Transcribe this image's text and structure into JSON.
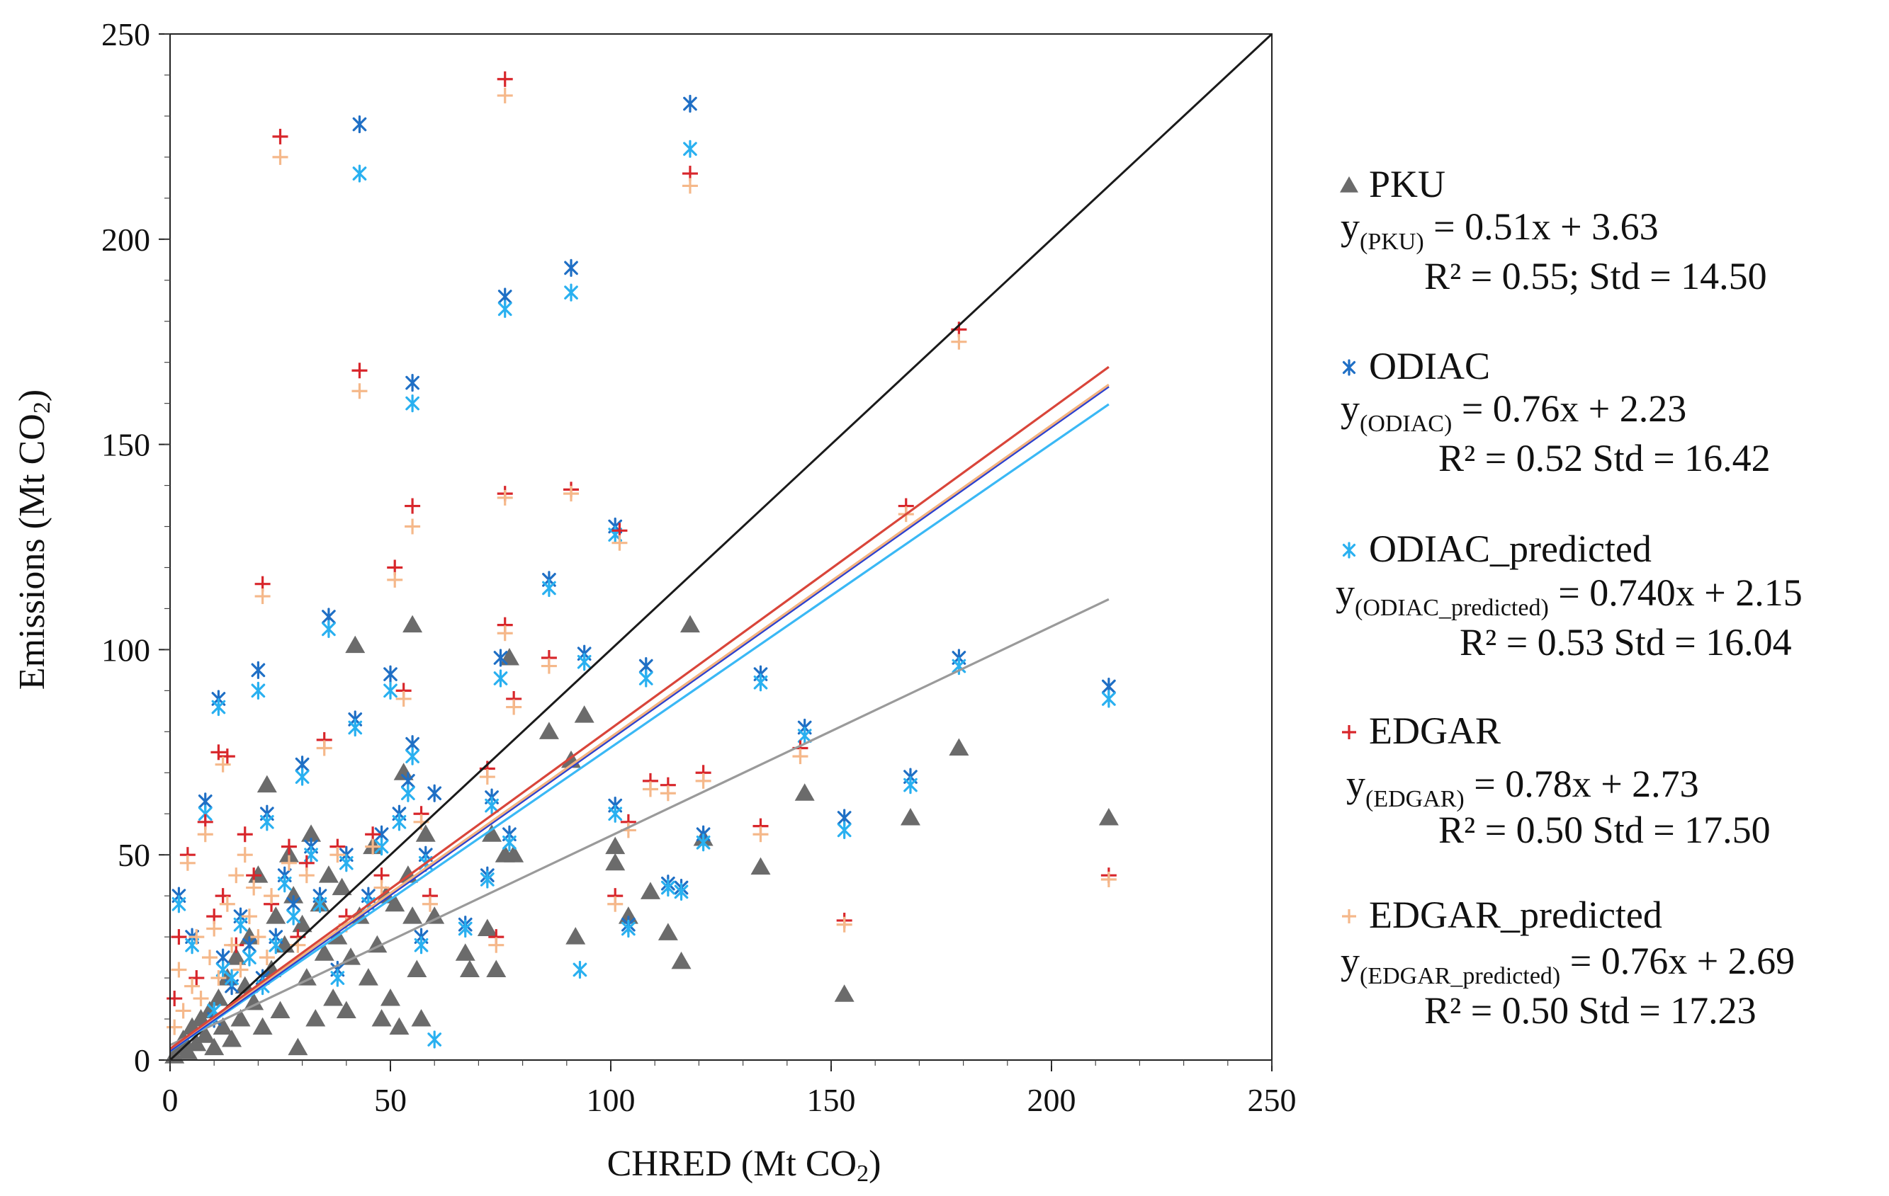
{
  "chart_data": {
    "type": "scatter",
    "title": "",
    "xlabel": "CHRED (Mt CO",
    "xlabel_sub": "2",
    "xlabel_end": ")",
    "ylabel": "Emissions (Mt CO",
    "ylabel_sub": "2",
    "ylabel_end": ")",
    "xlim": [
      0,
      250
    ],
    "ylim": [
      0,
      250
    ],
    "x_ticks": [
      "0",
      "50",
      "100",
      "150",
      "200",
      "250"
    ],
    "y_ticks": [
      "0",
      "50",
      "100",
      "150",
      "200",
      "250"
    ],
    "grid": false,
    "legend_position": "right",
    "reference_line": {
      "slope": 1,
      "intercept": 0,
      "color": "#1a1a1a"
    },
    "series": [
      {
        "name": "PKU",
        "marker": "triangle",
        "color": "#6b6b6b",
        "line_color": "#9a9a9a",
        "eq_y": "y",
        "eq_sub": "(PKU)",
        "eq_rest": " = 0.51x + 3.63",
        "stats": "R² = 0.55; Std = 14.50",
        "slope": 0.51,
        "intercept": 3.63,
        "r2": 0.55,
        "std": 14.5,
        "points": [
          [
            1,
            1
          ],
          [
            2,
            3
          ],
          [
            3,
            5
          ],
          [
            4,
            2
          ],
          [
            5,
            8
          ],
          [
            6,
            4
          ],
          [
            7,
            10
          ],
          [
            8,
            6
          ],
          [
            9,
            12
          ],
          [
            10,
            3
          ],
          [
            11,
            15
          ],
          [
            12,
            8
          ],
          [
            13,
            20
          ],
          [
            14,
            5
          ],
          [
            15,
            25
          ],
          [
            16,
            10
          ],
          [
            17,
            18
          ],
          [
            18,
            30
          ],
          [
            19,
            14
          ],
          [
            20,
            45
          ],
          [
            21,
            8
          ],
          [
            22,
            67
          ],
          [
            23,
            22
          ],
          [
            24,
            35
          ],
          [
            25,
            12
          ],
          [
            26,
            28
          ],
          [
            27,
            50
          ],
          [
            28,
            40
          ],
          [
            29,
            3
          ],
          [
            30,
            33
          ],
          [
            31,
            20
          ],
          [
            32,
            55
          ],
          [
            33,
            10
          ],
          [
            34,
            38
          ],
          [
            35,
            26
          ],
          [
            36,
            45
          ],
          [
            37,
            15
          ],
          [
            38,
            30
          ],
          [
            39,
            42
          ],
          [
            40,
            12
          ],
          [
            41,
            25
          ],
          [
            42,
            101
          ],
          [
            43,
            35
          ],
          [
            45,
            20
          ],
          [
            46,
            52
          ],
          [
            47,
            28
          ],
          [
            48,
            10
          ],
          [
            49,
            40
          ],
          [
            50,
            15
          ],
          [
            51,
            38
          ],
          [
            52,
            8
          ],
          [
            53,
            70
          ],
          [
            54,
            45
          ],
          [
            55,
            106
          ],
          [
            55,
            35
          ],
          [
            56,
            22
          ],
          [
            57,
            10
          ],
          [
            58,
            55
          ],
          [
            60,
            35
          ],
          [
            67,
            26
          ],
          [
            68,
            22
          ],
          [
            72,
            32
          ],
          [
            73,
            55
          ],
          [
            74,
            22
          ],
          [
            76,
            50
          ],
          [
            77,
            98
          ],
          [
            78,
            50
          ],
          [
            86,
            80
          ],
          [
            91,
            73
          ],
          [
            92,
            30
          ],
          [
            94,
            84
          ],
          [
            101,
            48
          ],
          [
            101,
            52
          ],
          [
            104,
            35
          ],
          [
            109,
            41
          ],
          [
            113,
            31
          ],
          [
            116,
            24
          ],
          [
            118,
            106
          ],
          [
            121,
            54
          ],
          [
            134,
            47
          ],
          [
            144,
            65
          ],
          [
            153,
            16
          ],
          [
            168,
            59
          ],
          [
            179,
            76
          ],
          [
            213,
            59
          ]
        ]
      },
      {
        "name": "ODIAC",
        "marker": "star",
        "color": "#1f6fc5",
        "line_color": "#2a3fd0",
        "eq_y": "y",
        "eq_sub": "(ODIAC)",
        "eq_rest": " = 0.76x + 2.23",
        "stats": "R² = 0.52 Std = 16.42",
        "slope": 0.76,
        "intercept": 2.23,
        "r2": 0.52,
        "std": 16.42,
        "points": [
          [
            2,
            40
          ],
          [
            5,
            30
          ],
          [
            8,
            63
          ],
          [
            10,
            10
          ],
          [
            11,
            88
          ],
          [
            12,
            25
          ],
          [
            14,
            18
          ],
          [
            16,
            35
          ],
          [
            18,
            28
          ],
          [
            20,
            95
          ],
          [
            21,
            20
          ],
          [
            22,
            60
          ],
          [
            24,
            30
          ],
          [
            26,
            45
          ],
          [
            28,
            38
          ],
          [
            30,
            72
          ],
          [
            32,
            52
          ],
          [
            34,
            40
          ],
          [
            36,
            108
          ],
          [
            38,
            22
          ],
          [
            40,
            50
          ],
          [
            42,
            83
          ],
          [
            43,
            228
          ],
          [
            45,
            40
          ],
          [
            48,
            55
          ],
          [
            50,
            94
          ],
          [
            52,
            60
          ],
          [
            54,
            68
          ],
          [
            55,
            165
          ],
          [
            55,
            77
          ],
          [
            57,
            30
          ],
          [
            58,
            50
          ],
          [
            60,
            65
          ],
          [
            67,
            33
          ],
          [
            72,
            45
          ],
          [
            73,
            64
          ],
          [
            75,
            98
          ],
          [
            76,
            186
          ],
          [
            77,
            55
          ],
          [
            86,
            117
          ],
          [
            91,
            193
          ],
          [
            94,
            99
          ],
          [
            101,
            130
          ],
          [
            101,
            62
          ],
          [
            104,
            33
          ],
          [
            108,
            96
          ],
          [
            113,
            43
          ],
          [
            116,
            42
          ],
          [
            118,
            233
          ],
          [
            121,
            55
          ],
          [
            134,
            94
          ],
          [
            144,
            81
          ],
          [
            153,
            59
          ],
          [
            168,
            69
          ],
          [
            179,
            98
          ],
          [
            213,
            91
          ]
        ]
      },
      {
        "name": "ODIAC_predicted",
        "marker": "star",
        "color": "#29b0f0",
        "line_color": "#3ab8f5",
        "eq_y": "y",
        "eq_sub": "(ODIAC_predicted)",
        "eq_rest": " = 0.740x + 2.15",
        "stats": "R² = 0.53 Std = 16.04",
        "slope": 0.74,
        "intercept": 2.15,
        "r2": 0.53,
        "std": 16.04,
        "points": [
          [
            2,
            38
          ],
          [
            5,
            28
          ],
          [
            8,
            60
          ],
          [
            10,
            12
          ],
          [
            11,
            86
          ],
          [
            12,
            22
          ],
          [
            14,
            20
          ],
          [
            16,
            33
          ],
          [
            18,
            25
          ],
          [
            20,
            90
          ],
          [
            21,
            18
          ],
          [
            22,
            58
          ],
          [
            24,
            28
          ],
          [
            26,
            43
          ],
          [
            28,
            35
          ],
          [
            30,
            69
          ],
          [
            32,
            50
          ],
          [
            34,
            38
          ],
          [
            36,
            105
          ],
          [
            38,
            20
          ],
          [
            40,
            48
          ],
          [
            42,
            81
          ],
          [
            43,
            216
          ],
          [
            45,
            38
          ],
          [
            48,
            52
          ],
          [
            50,
            90
          ],
          [
            52,
            58
          ],
          [
            54,
            65
          ],
          [
            55,
            160
          ],
          [
            55,
            74
          ],
          [
            57,
            28
          ],
          [
            58,
            48
          ],
          [
            60,
            5
          ],
          [
            67,
            32
          ],
          [
            72,
            44
          ],
          [
            73,
            62
          ],
          [
            75,
            93
          ],
          [
            76,
            183
          ],
          [
            77,
            53
          ],
          [
            86,
            115
          ],
          [
            91,
            187
          ],
          [
            93,
            22
          ],
          [
            94,
            97
          ],
          [
            101,
            128
          ],
          [
            101,
            60
          ],
          [
            104,
            32
          ],
          [
            108,
            93
          ],
          [
            113,
            42
          ],
          [
            116,
            41
          ],
          [
            118,
            222
          ],
          [
            121,
            53
          ],
          [
            134,
            92
          ],
          [
            144,
            79
          ],
          [
            153,
            56
          ],
          [
            168,
            67
          ],
          [
            179,
            96
          ],
          [
            213,
            88
          ]
        ]
      },
      {
        "name": "EDGAR",
        "marker": "plus",
        "color": "#d8262b",
        "line_color": "#d9453a",
        "eq_y": "y",
        "eq_sub": "(EDGAR)",
        "eq_rest": " = 0.78x + 2.73",
        "stats": "R² = 0.50 Std = 17.50",
        "slope": 0.78,
        "intercept": 2.73,
        "r2": 0.5,
        "std": 17.5,
        "points": [
          [
            1,
            15
          ],
          [
            2,
            30
          ],
          [
            4,
            50
          ],
          [
            6,
            20
          ],
          [
            8,
            58
          ],
          [
            10,
            35
          ],
          [
            11,
            75
          ],
          [
            12,
            40
          ],
          [
            13,
            74
          ],
          [
            15,
            28
          ],
          [
            17,
            55
          ],
          [
            19,
            45
          ],
          [
            21,
            116
          ],
          [
            23,
            38
          ],
          [
            25,
            225
          ],
          [
            27,
            52
          ],
          [
            29,
            30
          ],
          [
            31,
            48
          ],
          [
            35,
            78
          ],
          [
            38,
            52
          ],
          [
            40,
            35
          ],
          [
            43,
            168
          ],
          [
            46,
            55
          ],
          [
            48,
            45
          ],
          [
            51,
            120
          ],
          [
            53,
            90
          ],
          [
            55,
            135
          ],
          [
            57,
            60
          ],
          [
            59,
            40
          ],
          [
            72,
            71
          ],
          [
            74,
            30
          ],
          [
            76,
            239
          ],
          [
            76,
            138
          ],
          [
            76,
            106
          ],
          [
            78,
            88
          ],
          [
            86,
            98
          ],
          [
            91,
            139
          ],
          [
            101,
            40
          ],
          [
            102,
            129
          ],
          [
            104,
            58
          ],
          [
            109,
            68
          ],
          [
            113,
            67
          ],
          [
            118,
            216
          ],
          [
            121,
            70
          ],
          [
            134,
            57
          ],
          [
            143,
            76
          ],
          [
            153,
            34
          ],
          [
            167,
            135
          ],
          [
            179,
            178
          ],
          [
            213,
            45
          ]
        ]
      },
      {
        "name": "EDGAR_predicted",
        "marker": "plus",
        "color": "#f5b88a",
        "line_color": "#f3b27e",
        "eq_y": "y",
        "eq_sub": "(EDGAR_predicted)",
        "eq_rest": " = 0.76x + 2.69",
        "stats": "R² = 0.50 Std = 17.23",
        "slope": 0.76,
        "intercept": 2.69,
        "r2": 0.5,
        "std": 17.23,
        "points": [
          [
            1,
            8
          ],
          [
            2,
            22
          ],
          [
            3,
            12
          ],
          [
            4,
            48
          ],
          [
            5,
            18
          ],
          [
            6,
            30
          ],
          [
            7,
            15
          ],
          [
            8,
            55
          ],
          [
            9,
            25
          ],
          [
            10,
            32
          ],
          [
            11,
            20
          ],
          [
            12,
            72
          ],
          [
            13,
            38
          ],
          [
            14,
            28
          ],
          [
            15,
            45
          ],
          [
            16,
            22
          ],
          [
            17,
            50
          ],
          [
            18,
            35
          ],
          [
            19,
            42
          ],
          [
            20,
            30
          ],
          [
            21,
            113
          ],
          [
            22,
            25
          ],
          [
            23,
            40
          ],
          [
            25,
            220
          ],
          [
            27,
            48
          ],
          [
            29,
            28
          ],
          [
            31,
            45
          ],
          [
            35,
            76
          ],
          [
            38,
            50
          ],
          [
            40,
            33
          ],
          [
            43,
            163
          ],
          [
            46,
            52
          ],
          [
            48,
            42
          ],
          [
            51,
            117
          ],
          [
            53,
            88
          ],
          [
            55,
            130
          ],
          [
            57,
            58
          ],
          [
            59,
            38
          ],
          [
            72,
            69
          ],
          [
            74,
            28
          ],
          [
            76,
            235
          ],
          [
            76,
            137
          ],
          [
            76,
            104
          ],
          [
            78,
            86
          ],
          [
            86,
            96
          ],
          [
            91,
            138
          ],
          [
            101,
            38
          ],
          [
            102,
            126
          ],
          [
            104,
            56
          ],
          [
            109,
            66
          ],
          [
            113,
            65
          ],
          [
            118,
            213
          ],
          [
            121,
            68
          ],
          [
            134,
            55
          ],
          [
            143,
            74
          ],
          [
            153,
            33
          ],
          [
            167,
            133
          ],
          [
            179,
            175
          ],
          [
            213,
            44
          ]
        ]
      }
    ]
  }
}
